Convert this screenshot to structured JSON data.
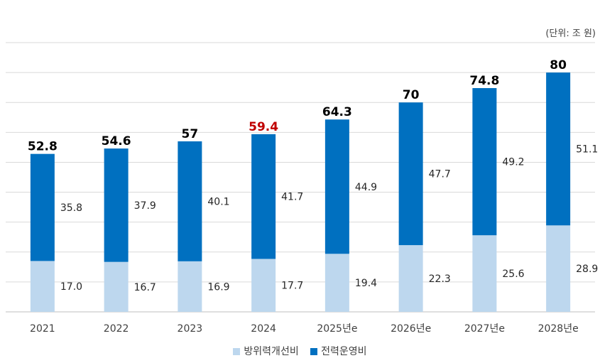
{
  "chart_data": {
    "type": "bar",
    "stacked": true,
    "unit_label": "(단위: 조 원)",
    "categories": [
      "2021",
      "2022",
      "2023",
      "2024",
      "2025년e",
      "2026년e",
      "2027년e",
      "2028년e"
    ],
    "series": [
      {
        "name": "방위력개선비",
        "color": "#BDD7EE",
        "values": [
          17.0,
          16.7,
          16.9,
          17.7,
          19.4,
          22.3,
          25.6,
          28.9
        ],
        "labels": [
          "17.0",
          "16.7",
          "16.9",
          "17.7",
          "19.4",
          "22.3",
          "25.6",
          "28.9"
        ]
      },
      {
        "name": "전력운영비",
        "color": "#0070C0",
        "values": [
          35.8,
          37.9,
          40.1,
          41.7,
          44.9,
          47.7,
          49.2,
          51.1
        ],
        "labels": [
          "35.8",
          "37.9",
          "40.1",
          "41.7",
          "44.9",
          "47.7",
          "49.2",
          "51.1"
        ]
      }
    ],
    "totals": [
      "52.8",
      "54.6",
      "57",
      "59.4",
      "64.3",
      "70",
      "74.8",
      "80"
    ],
    "total_values": [
      52.8,
      54.6,
      57,
      59.4,
      64.3,
      70,
      74.8,
      80
    ],
    "highlight_index": 3,
    "highlight_color": "#C00000",
    "ylim": [
      0,
      90
    ],
    "grid_step": 10,
    "grid": true,
    "legend_position": "bottom"
  }
}
